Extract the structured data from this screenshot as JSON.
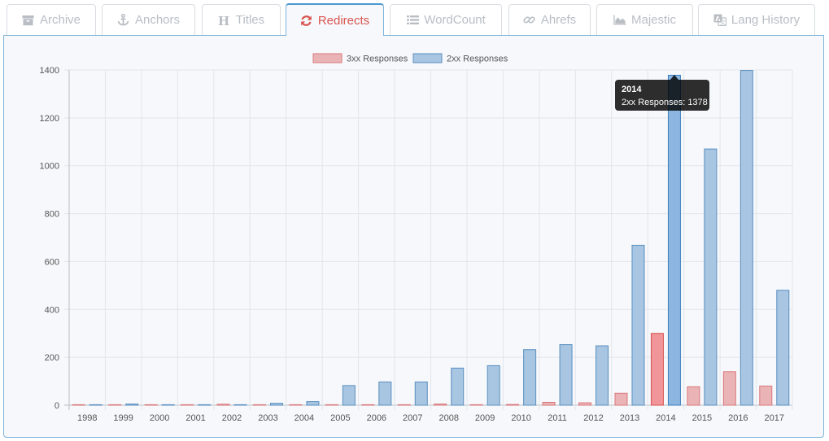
{
  "tabs": [
    {
      "label": "Archive",
      "icon": "archive-icon",
      "active": false
    },
    {
      "label": "Anchors",
      "icon": "anchor-icon",
      "active": false
    },
    {
      "label": "Titles",
      "icon": "heading-icon",
      "active": false
    },
    {
      "label": "Redirects",
      "icon": "refresh-icon",
      "active": true
    },
    {
      "label": "WordCount",
      "icon": "list-icon",
      "active": false
    },
    {
      "label": "Ahrefs",
      "icon": "link-icon",
      "active": false
    },
    {
      "label": "Majestic",
      "icon": "area-chart-icon",
      "active": false
    },
    {
      "label": "Lang History",
      "icon": "language-icon",
      "active": false
    }
  ],
  "colors": {
    "accent": "#4a97cf",
    "active_tab_text": "#d9534f",
    "inactive_tab_text": "#b9bec4",
    "series_3xx_fill": "#eab4b6",
    "series_3xx_stroke": "#d9777b",
    "series_2xx_fill": "#a8c5e1",
    "series_2xx_stroke": "#5a8fc0",
    "highlight_3xx_fill": "#f09599",
    "highlight_3xx_stroke": "#d9534f",
    "highlight_2xx_fill": "#8cb6e0",
    "highlight_2xx_stroke": "#3b7fc0"
  },
  "chart_data": {
    "type": "bar",
    "categories": [
      "1998",
      "1999",
      "2000",
      "2001",
      "2002",
      "2003",
      "2004",
      "2005",
      "2006",
      "2007",
      "2008",
      "2009",
      "2010",
      "2011",
      "2012",
      "2013",
      "2014",
      "2015",
      "2016",
      "2017"
    ],
    "series": [
      {
        "name": "3xx Responses",
        "values": [
          0,
          0,
          0,
          1,
          4,
          0,
          0,
          0,
          1,
          1,
          5,
          2,
          3,
          12,
          10,
          50,
          300,
          77,
          140,
          80
        ]
      },
      {
        "name": "2xx Responses",
        "values": [
          1,
          5,
          2,
          0,
          0,
          8,
          15,
          82,
          97,
          97,
          155,
          165,
          232,
          253,
          248,
          668,
          1378,
          1070,
          1398,
          480
        ]
      }
    ],
    "ylim": [
      0,
      1400
    ],
    "yticks": [
      0,
      200,
      400,
      600,
      800,
      1000,
      1200,
      1400
    ],
    "grid": true,
    "legend": "top-center",
    "highlight_index": 16,
    "tooltip": {
      "title": "2014",
      "body": "2xx Responses: 1378"
    }
  }
}
